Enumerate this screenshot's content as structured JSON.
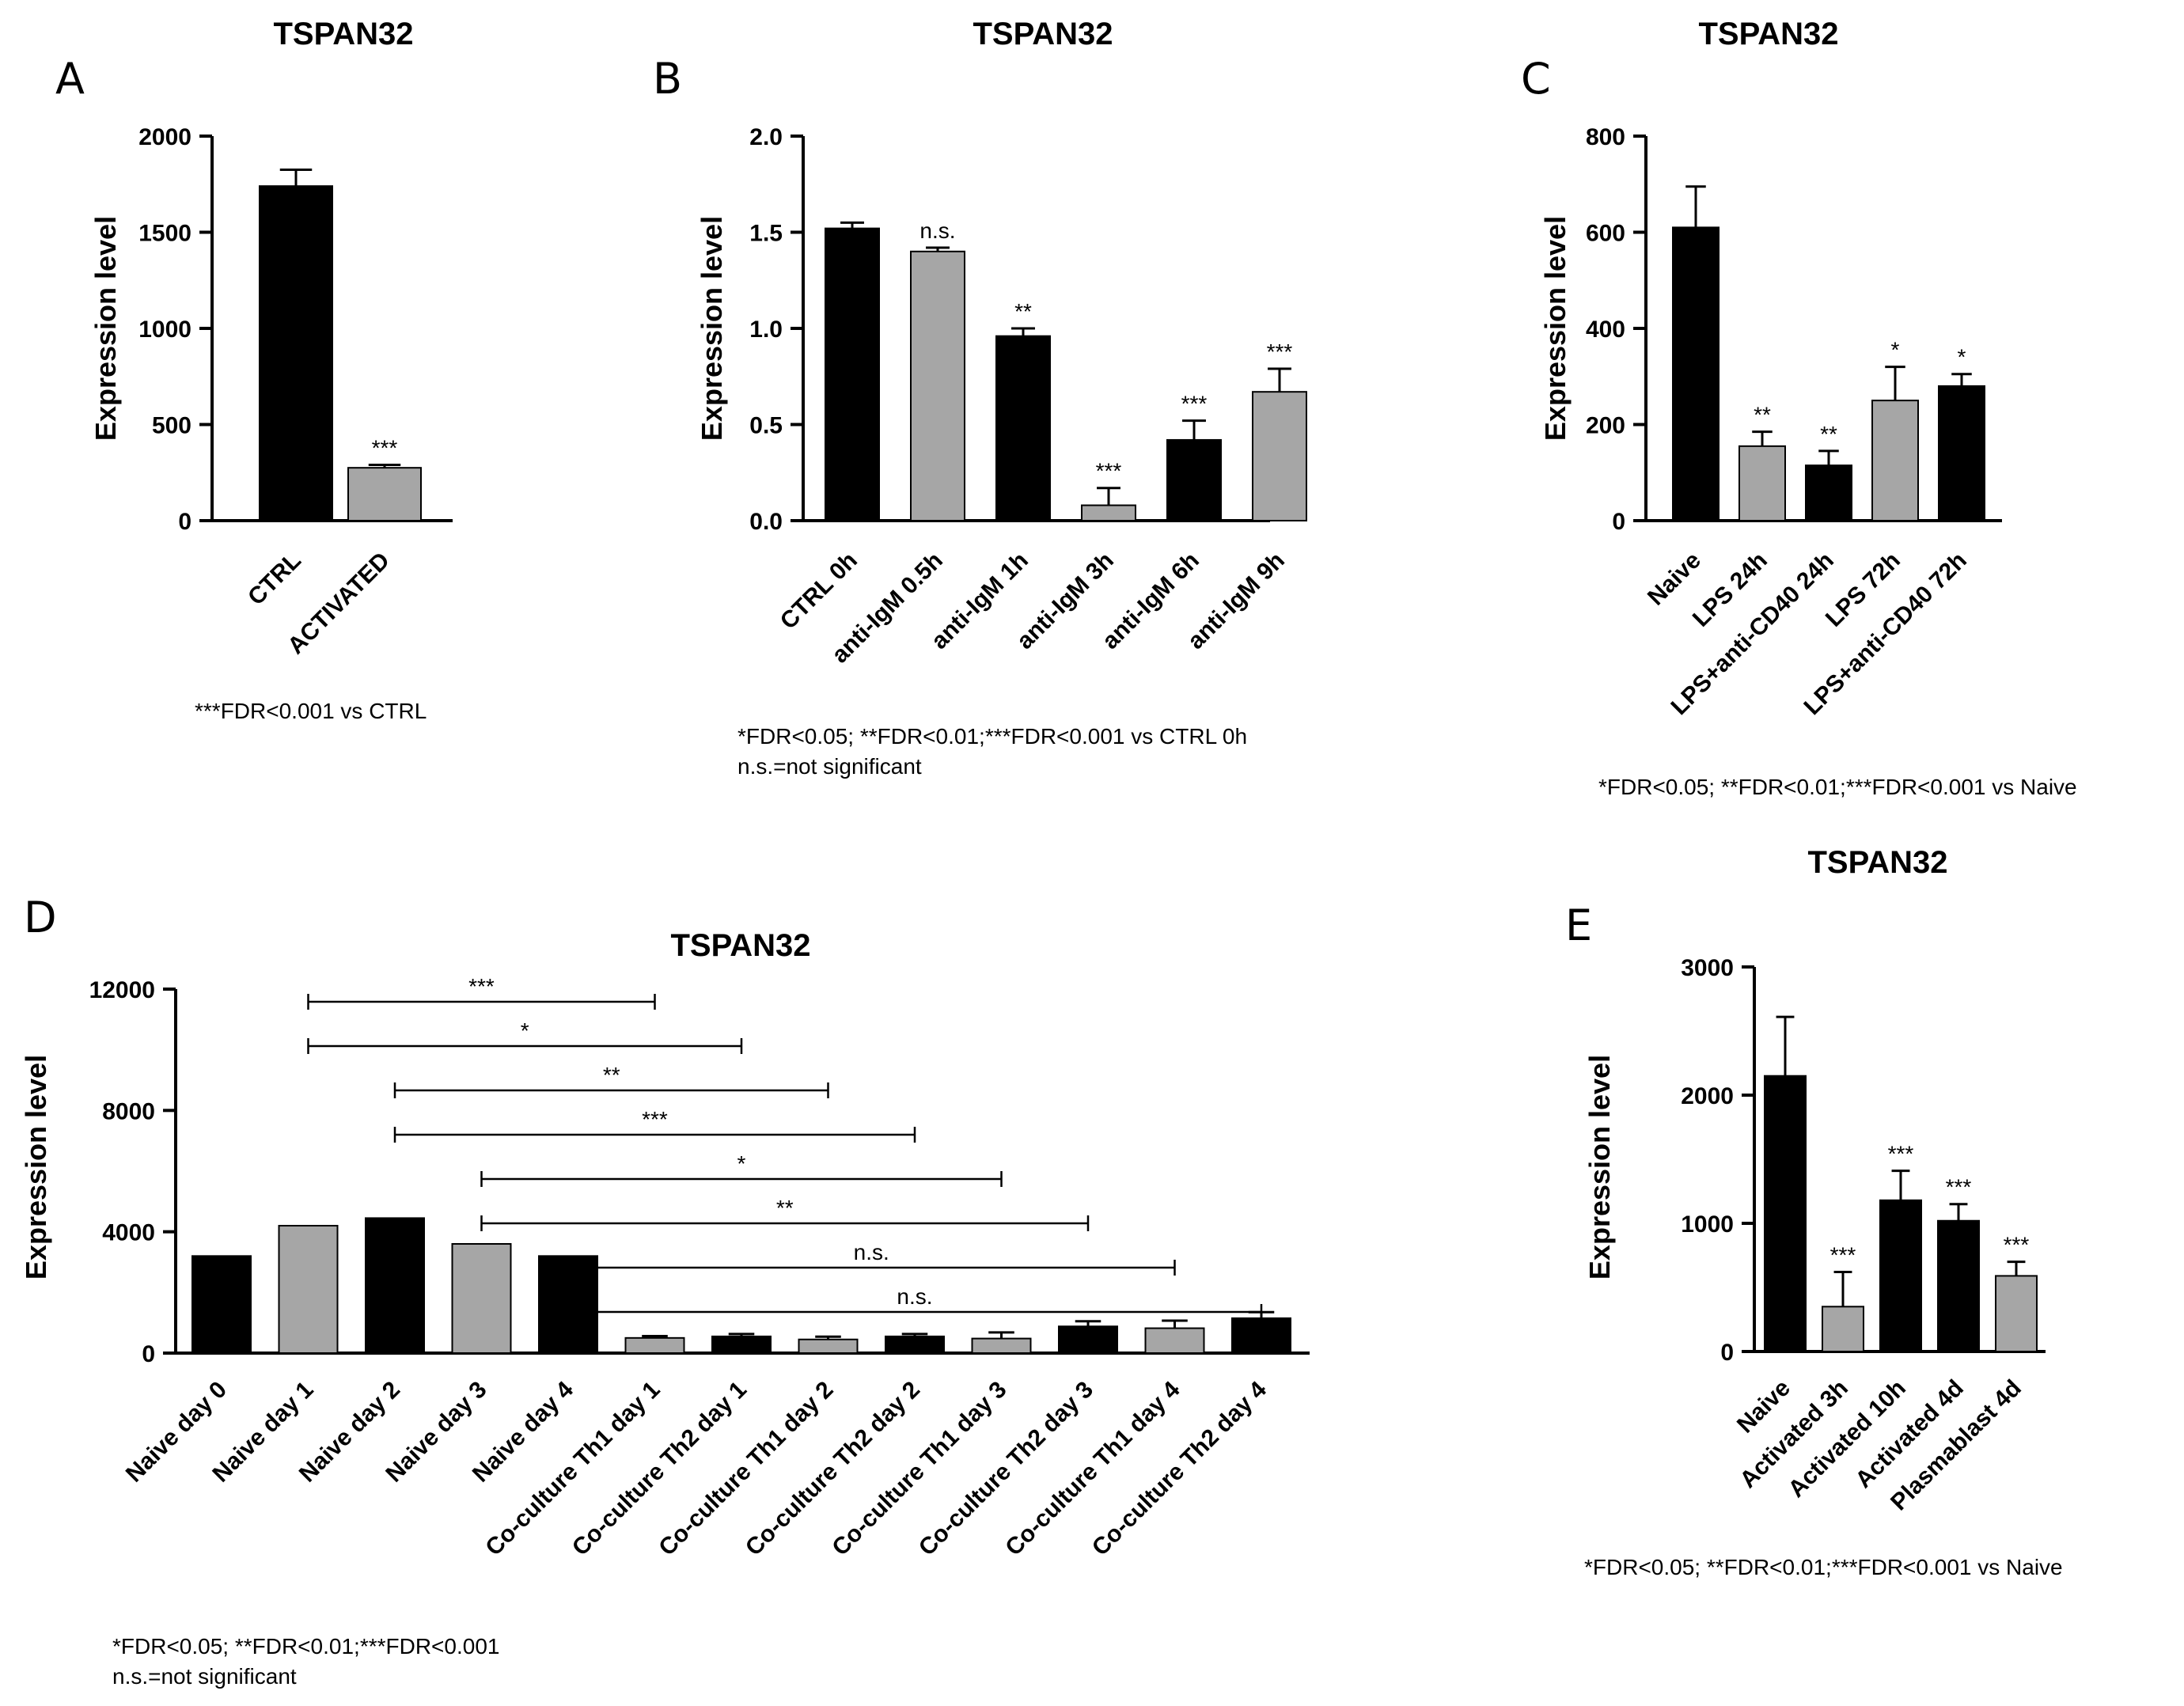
{
  "panels_text": {
    "A": {
      "letter": "A",
      "title": "TSPAN32",
      "ylabel": "Expression level",
      "footnote": [
        "***FDR<0.001 vs CTRL"
      ]
    },
    "B": {
      "letter": "B",
      "title": "TSPAN32",
      "ylabel": "Expression level",
      "footnote": [
        "*FDR<0.05; **FDR<0.01;***FDR<0.001 vs CTRL 0h",
        "n.s.=not significant"
      ]
    },
    "C": {
      "letter": "C",
      "title": "TSPAN32",
      "ylabel": "Expression level",
      "footnote": [
        "*FDR<0.05; **FDR<0.01;***FDR<0.001 vs Naive"
      ]
    },
    "D": {
      "letter": "D",
      "title": "TSPAN32",
      "ylabel": "Expression level",
      "footnote": [
        "*FDR<0.05; **FDR<0.01;***FDR<0.001",
        "n.s.=not significant"
      ]
    },
    "E": {
      "letter": "E",
      "title": "TSPAN32",
      "ylabel": "Expression level",
      "footnote": [
        "*FDR<0.05; **FDR<0.01;***FDR<0.001 vs Naive"
      ]
    }
  },
  "colors": {
    "black": "#000000",
    "gray": "#a6a6a6"
  },
  "chart_data": [
    {
      "id": "A",
      "type": "bar",
      "title": "TSPAN32",
      "ylabel": "Expression level",
      "ylim": [
        0,
        2000
      ],
      "yticks": [
        0,
        500,
        1000,
        1500,
        2000
      ],
      "categories": [
        "CTRL",
        "ACTIVATED"
      ],
      "values": [
        1740,
        275
      ],
      "errors": [
        85,
        15
      ],
      "bar_colors": [
        "black",
        "gray"
      ],
      "significance": [
        "",
        "***"
      ]
    },
    {
      "id": "B",
      "type": "bar",
      "title": "TSPAN32",
      "ylabel": "Expression level",
      "ylim": [
        0,
        2.0
      ],
      "yticks": [
        0.0,
        0.5,
        1.0,
        1.5,
        2.0
      ],
      "categories": [
        "CTRL 0h",
        "anti-IgM 0.5h",
        "anti-IgM 1h",
        "anti-IgM 3h",
        "anti-IgM 6h",
        "anti-IgM 9h"
      ],
      "values": [
        1.52,
        1.4,
        0.96,
        0.08,
        0.42,
        0.67
      ],
      "errors": [
        0.03,
        0.02,
        0.04,
        0.09,
        0.1,
        0.12
      ],
      "bar_colors": [
        "black",
        "gray",
        "black",
        "gray",
        "black",
        "gray"
      ],
      "significance": [
        "",
        "n.s.",
        "**",
        "***",
        "***",
        "***"
      ]
    },
    {
      "id": "C",
      "type": "bar",
      "title": "TSPAN32",
      "ylabel": "Expression level",
      "ylim": [
        0,
        800
      ],
      "yticks": [
        0,
        200,
        400,
        600,
        800
      ],
      "categories": [
        "Naive",
        "LPS 24h",
        "LPS+anti-CD40 24h",
        "LPS 72h",
        "LPS+anti-CD40 72h"
      ],
      "values": [
        610,
        155,
        115,
        250,
        280
      ],
      "errors": [
        85,
        30,
        30,
        70,
        25
      ],
      "bar_colors": [
        "black",
        "gray",
        "black",
        "gray",
        "black"
      ],
      "significance": [
        "",
        "**",
        "**",
        "*",
        "*"
      ]
    },
    {
      "id": "D",
      "type": "bar",
      "title": "TSPAN32",
      "ylabel": "Expression level",
      "ylim": [
        0,
        12000
      ],
      "yticks": [
        0,
        4000,
        8000,
        12000
      ],
      "categories": [
        "Naive day 0",
        "Naive day 1",
        "Naive day 2",
        "Naive day 3",
        "Naive day 4",
        "Co-culture Th1 day 1",
        "Co-culture Th2 day 1",
        "Co-culture Th1 day 2",
        "Co-culture Th2 day 2",
        "Co-culture Th1 day 3",
        "Co-culture Th2 day 3",
        "Co-culture Th1 day 4",
        "Co-culture Th2 day 4"
      ],
      "values": [
        3200,
        4200,
        4450,
        3600,
        3200,
        500,
        550,
        450,
        550,
        480,
        880,
        820,
        1150
      ],
      "errors": [
        0,
        0,
        0,
        0,
        0,
        60,
        80,
        90,
        80,
        200,
        170,
        250,
        200
      ],
      "bar_colors": [
        "black",
        "gray",
        "black",
        "gray",
        "black",
        "gray",
        "black",
        "gray",
        "black",
        "gray",
        "black",
        "gray",
        "black"
      ],
      "comparisons": [
        {
          "from": 1,
          "to": 5,
          "label": "***"
        },
        {
          "from": 1,
          "to": 6,
          "label": "*"
        },
        {
          "from": 2,
          "to": 7,
          "label": "**"
        },
        {
          "from": 2,
          "to": 8,
          "label": "***"
        },
        {
          "from": 3,
          "to": 9,
          "label": "*"
        },
        {
          "from": 3,
          "to": 10,
          "label": "**"
        },
        {
          "from": 4,
          "to": 11,
          "label": "n.s."
        },
        {
          "from": 4,
          "to": 12,
          "label": "n.s."
        }
      ]
    },
    {
      "id": "E",
      "type": "bar",
      "title": "TSPAN32",
      "ylabel": "Expression level",
      "ylim": [
        0,
        3000
      ],
      "yticks": [
        0,
        1000,
        2000,
        3000
      ],
      "categories": [
        "Naive",
        "Activated 3h",
        "Activated 10h",
        "Activated 4d",
        "Plasmablast 4d"
      ],
      "values": [
        2150,
        350,
        1180,
        1020,
        590
      ],
      "errors": [
        460,
        270,
        230,
        130,
        110
      ],
      "bar_colors": [
        "black",
        "gray",
        "black",
        "black",
        "gray"
      ],
      "significance": [
        "",
        "***",
        "***",
        "***",
        "***"
      ]
    }
  ]
}
